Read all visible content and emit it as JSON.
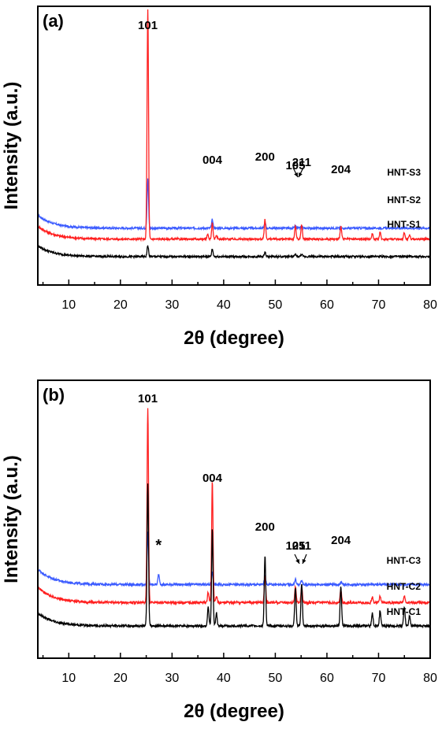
{
  "chart_data": [
    {
      "type": "line",
      "panel_label": "(a)",
      "xlabel": "2θ (degree)",
      "ylabel": "Intensity (a.u.)",
      "xlim": [
        4,
        80
      ],
      "xticks": [
        10,
        20,
        30,
        40,
        50,
        60,
        70,
        80
      ],
      "peak_labels": [
        {
          "text": "101",
          "x": 25.3
        },
        {
          "text": "004",
          "x": 37.8
        },
        {
          "text": "200",
          "x": 48.0
        },
        {
          "text": "105",
          "x": 53.9
        },
        {
          "text": "211",
          "x": 55.1
        },
        {
          "text": "204",
          "x": 62.7
        }
      ],
      "series": [
        {
          "name": "HNT-S3",
          "color": "#3b5bff",
          "baseline": 0.52,
          "rise": 0.12,
          "peaks": [
            [
              25.3,
              0.45
            ],
            [
              37.8,
              0.08
            ],
            [
              48.0,
              0.05
            ],
            [
              53.9,
              0.02
            ],
            [
              55.1,
              0.02
            ]
          ]
        },
        {
          "name": "HNT-S2",
          "color": "#ff2020",
          "baseline": 0.42,
          "rise": 0.12,
          "peaks": [
            [
              25.3,
              2.1
            ],
            [
              36.9,
              0.04
            ],
            [
              37.8,
              0.15
            ],
            [
              38.6,
              0.04
            ],
            [
              48.0,
              0.18
            ],
            [
              53.9,
              0.12
            ],
            [
              55.1,
              0.13
            ],
            [
              62.7,
              0.12
            ],
            [
              68.8,
              0.05
            ],
            [
              70.3,
              0.06
            ],
            [
              75.0,
              0.06
            ],
            [
              76.0,
              0.04
            ]
          ]
        },
        {
          "name": "HNT-S1",
          "color": "#000000",
          "baseline": 0.26,
          "rise": 0.1,
          "peaks": [
            [
              25.3,
              0.1
            ],
            [
              37.8,
              0.07
            ],
            [
              48.0,
              0.04
            ],
            [
              53.9,
              0.02
            ],
            [
              55.1,
              0.02
            ]
          ]
        }
      ]
    },
    {
      "type": "line",
      "panel_label": "(b)",
      "xlabel": "2θ (degree)",
      "ylabel": "Intensity (a.u.)",
      "xlim": [
        4,
        80
      ],
      "xticks": [
        10,
        20,
        30,
        40,
        50,
        60,
        70,
        80
      ],
      "peak_labels": [
        {
          "text": "101",
          "x": 25.3
        },
        {
          "text": "004",
          "x": 37.8
        },
        {
          "text": "*",
          "x": 27.4
        },
        {
          "text": "200",
          "x": 48.0
        },
        {
          "text": "105",
          "x": 53.9
        },
        {
          "text": "211",
          "x": 55.1
        },
        {
          "text": "204",
          "x": 62.7
        }
      ],
      "series": [
        {
          "name": "HNT-C3",
          "color": "#3b5bff",
          "baseline": 0.57,
          "rise": 0.12,
          "peaks": [
            [
              25.3,
              0.4
            ],
            [
              27.4,
              0.08
            ],
            [
              37.8,
              0.1
            ],
            [
              48.0,
              0.06
            ],
            [
              53.9,
              0.04
            ],
            [
              55.1,
              0.03
            ],
            [
              62.7,
              0.02
            ]
          ]
        },
        {
          "name": "HNT-C2",
          "color": "#ff2020",
          "baseline": 0.43,
          "rise": 0.12,
          "peaks": [
            [
              25.3,
              1.5
            ],
            [
              37.0,
              0.08
            ],
            [
              37.8,
              0.95
            ],
            [
              38.6,
              0.05
            ],
            [
              48.0,
              0.2
            ],
            [
              53.9,
              0.12
            ],
            [
              55.1,
              0.12
            ],
            [
              62.7,
              0.1
            ],
            [
              68.8,
              0.04
            ],
            [
              70.3,
              0.05
            ],
            [
              75.0,
              0.05
            ]
          ]
        },
        {
          "name": "HNT-C1",
          "color": "#000000",
          "baseline": 0.25,
          "rise": 0.1,
          "peaks": [
            [
              25.3,
              1.1
            ],
            [
              37.0,
              0.15
            ],
            [
              37.8,
              0.75
            ],
            [
              38.6,
              0.1
            ],
            [
              48.0,
              0.55
            ],
            [
              53.9,
              0.3
            ],
            [
              55.1,
              0.32
            ],
            [
              62.7,
              0.3
            ],
            [
              68.8,
              0.1
            ],
            [
              70.3,
              0.12
            ],
            [
              75.0,
              0.15
            ],
            [
              76.0,
              0.08
            ]
          ]
        }
      ]
    }
  ]
}
